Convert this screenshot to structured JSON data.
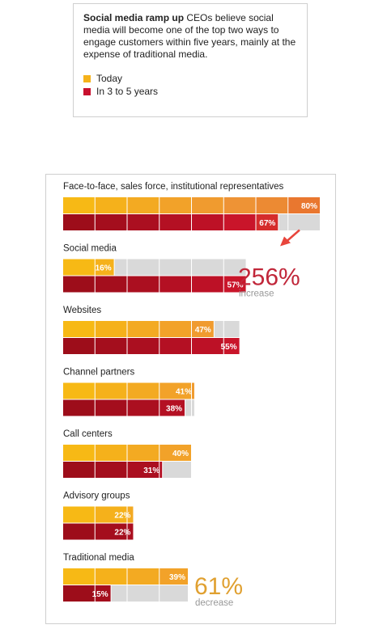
{
  "intro": {
    "title": "Social media ramp up",
    "body": "CEOs believe social media will become one of the top two ways to engage customers within five years, mainly at the expense of traditional media."
  },
  "legend": [
    {
      "label": "Today",
      "color": "#f5b21a"
    },
    {
      "label": "In 3 to 5 years",
      "color": "#c8102e"
    }
  ],
  "chart_data": {
    "type": "bar",
    "orientation": "horizontal",
    "xlim": [
      0,
      100
    ],
    "segments_per_bar": 10,
    "categories": [
      "Face-to-face, sales force, institutional representatives",
      "Social media",
      "Websites",
      "Channel partners",
      "Call centers",
      "Advisory groups",
      "Traditional media"
    ],
    "series": [
      {
        "name": "Today",
        "values": [
          80,
          16,
          47,
          41,
          40,
          22,
          39
        ],
        "labels": [
          "80%",
          "16%",
          "47%",
          "41%",
          "40%",
          "22%",
          "39%"
        ]
      },
      {
        "name": "In 3 to 5 years",
        "values": [
          67,
          57,
          55,
          38,
          31,
          22,
          15
        ],
        "labels": [
          "67%",
          "57%",
          "55%",
          "38%",
          "31%",
          "22%",
          "15%"
        ]
      }
    ],
    "max_extent": [
      80,
      57,
      55,
      41,
      40,
      22,
      39
    ],
    "annotations": [
      {
        "category": "Social media",
        "value": "256%",
        "label": "increase",
        "color": "#c1273a"
      },
      {
        "category": "Traditional media",
        "value": "61%",
        "label": "decrease",
        "color": "#e0a030"
      }
    ],
    "colors": {
      "today": [
        "#f7b915",
        "#f5b11b",
        "#f3aa22",
        "#f2a229",
        "#f09b2f",
        "#ee9335",
        "#ec8a33",
        "#e9772f",
        "#e4562b",
        "#df3326"
      ],
      "future": [
        "#9d0d1a",
        "#a40e1d",
        "#ab0f20",
        "#b41023",
        "#bd1126",
        "#c9152a",
        "#d52c2b",
        "#e0462c",
        "#e55f2c",
        "#ea782d"
      ],
      "remainder": "#d9d9d9"
    }
  }
}
